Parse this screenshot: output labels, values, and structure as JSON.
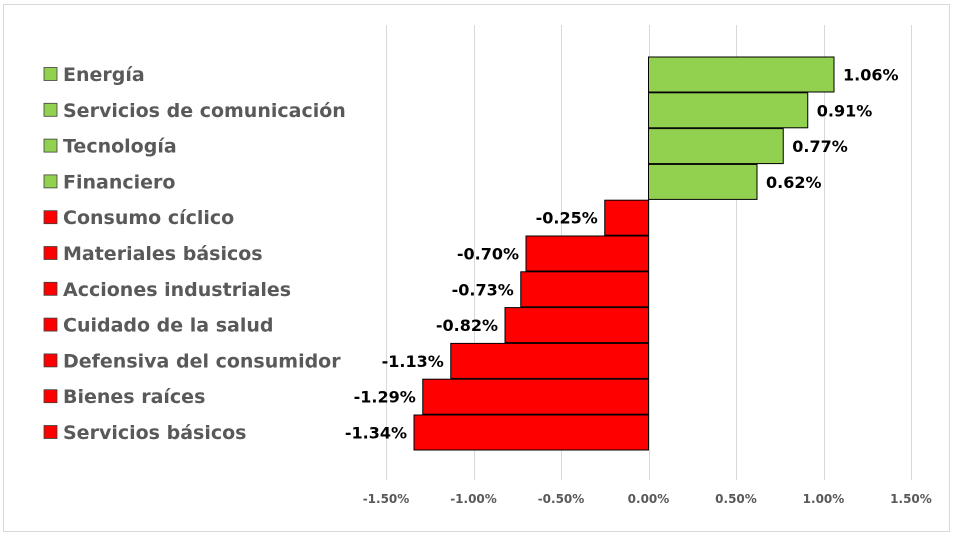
{
  "chart_data": {
    "type": "bar",
    "orientation": "horizontal",
    "categories": [
      "Energía",
      "Servicios de comunicación",
      "Tecnología",
      "Financiero",
      "Consumo cíclico",
      "Materiales básicos",
      "Acciones industriales",
      "Cuidado de la salud",
      "Defensiva del consumidor",
      "Bienes raíces",
      "Servicios básicos"
    ],
    "values": [
      1.06,
      0.91,
      0.77,
      0.62,
      -0.25,
      -0.7,
      -0.73,
      -0.82,
      -1.13,
      -1.29,
      -1.34
    ],
    "value_labels": [
      "1.06%",
      "0.91%",
      "0.77%",
      "0.62%",
      "-0.25%",
      "-0.70%",
      "-0.73%",
      "-0.82%",
      "-1.13%",
      "-1.29%",
      "-1.34%"
    ],
    "xlim": [
      -1.5,
      1.5
    ],
    "x_ticks": [
      -1.5,
      -1.0,
      -0.5,
      0.0,
      0.5,
      1.0,
      1.5
    ],
    "x_tick_labels": [
      "-1.50%",
      "-1.00%",
      "-0.50%",
      "0.00%",
      "0.50%",
      "1.00%",
      "1.50%"
    ],
    "title": "",
    "xlabel": "",
    "ylabel": "",
    "grid": "vertical",
    "legend": "left",
    "colors": {
      "positive": "#92d050",
      "negative": "#ff0000",
      "bar_border": "#000000",
      "grid": "#d9d9d9",
      "label_text": "#595959"
    }
  }
}
